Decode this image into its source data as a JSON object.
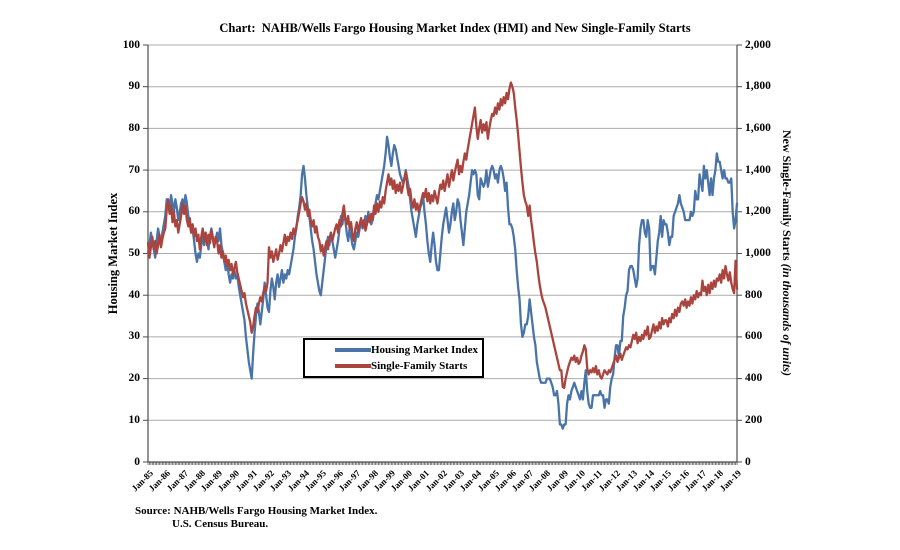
{
  "chart": {
    "title": "Chart:  NAHB/Wells Fargo Housing Market Index (HMI) and New Single-Family Starts",
    "source_line1": "Source: NAHB/Wells Fargo Housing Market Index.",
    "source_line2": "U.S. Census Bureau."
  },
  "colors": {
    "background": "#FFFFFF",
    "grid": "#ABABAB",
    "axis": "#4D4D4D",
    "text": "#000000",
    "hmi_line": "#4A74A8",
    "starts_line": "#A9443E"
  },
  "chart_data": {
    "type": "line",
    "title": "Chart:  NAHB/Wells Fargo Housing Market Index (HMI) and New Single-Family Starts",
    "x_unit": "monthly, Jan-1985 through Feb-2019",
    "grid": true,
    "x_tick_labels": [
      "Jan-85",
      "Jan-86",
      "Jan-87",
      "Jan-88",
      "Jan-89",
      "Jan-90",
      "Jan-91",
      "Jan-92",
      "Jan-93",
      "Jan-94",
      "Jan-95",
      "Jan-96",
      "Jan-97",
      "Jan-98",
      "Jan-99",
      "Jan-00",
      "Jan-01",
      "Jan-02",
      "Jan-03",
      "Jan-04",
      "Jan-05",
      "Jan-06",
      "Jan-07",
      "Jan-08",
      "Jan-09",
      "Jan-10",
      "Jan-11",
      "Jan-12",
      "Jan-13",
      "Jan-14",
      "Jan-15",
      "Jan-16",
      "Jan-17",
      "Jan-18",
      "Jan-19"
    ],
    "left_axis": {
      "label": "Housing Market Index",
      "min": 0,
      "max": 100,
      "tick_step": 10,
      "tick_labels": [
        "100",
        "90",
        "80",
        "70",
        "60",
        "50",
        "40",
        "30",
        "20",
        "10",
        "0"
      ]
    },
    "right_axis": {
      "label": "New Single-Family Starts ",
      "label_italic": "(in thousands of units)",
      "min": 0,
      "max": 2000,
      "tick_step": 200,
      "tick_labels": [
        "2,000",
        "1,800",
        "1,600",
        "1,400",
        "1,200",
        "1,000",
        "800",
        "600",
        "400",
        "200",
        "0"
      ]
    },
    "legend": {
      "position": "inside-lower-left",
      "entries": [
        {
          "name": "Housing Market Index",
          "color": "#4A74A8"
        },
        {
          "name": "Single-Family Starts",
          "color": "#A9443E"
        }
      ]
    },
    "series": [
      {
        "name": "Housing Market Index",
        "axis": "left",
        "color": "#4A74A8",
        "values": [
          50,
          52,
          55,
          53,
          51,
          49,
          53,
          56,
          54,
          52,
          55,
          57,
          59,
          63,
          62,
          60,
          64,
          62,
          60,
          63,
          61,
          58,
          60,
          62,
          63,
          61,
          64,
          62,
          59,
          57,
          55,
          56,
          53,
          50,
          48,
          50,
          49,
          52,
          54,
          52,
          55,
          53,
          51,
          54,
          56,
          54,
          52,
          53,
          55,
          53,
          56,
          52,
          50,
          48,
          46,
          48,
          45,
          43,
          45,
          44,
          46,
          44,
          45,
          42,
          40,
          38,
          36,
          34,
          30,
          27,
          24,
          22,
          20,
          26,
          31,
          35,
          38,
          36,
          33,
          36,
          39,
          43,
          40,
          37,
          36,
          41,
          44,
          42,
          39,
          43,
          45,
          42,
          44,
          46,
          43,
          45,
          44,
          46,
          45,
          47,
          49,
          51,
          54,
          56,
          59,
          61,
          64,
          69,
          71,
          68,
          64,
          61,
          59,
          56,
          53,
          51,
          48,
          45,
          43,
          41,
          40,
          43,
          46,
          49,
          52,
          54,
          52,
          55,
          53,
          51,
          49,
          51,
          53,
          56,
          59,
          57,
          60,
          58,
          55,
          53,
          56,
          54,
          52,
          51,
          53,
          55,
          54,
          56,
          58,
          56,
          57,
          59,
          57,
          60,
          58,
          57,
          58,
          60,
          62,
          64,
          63,
          65,
          67,
          69,
          71,
          74,
          78,
          76,
          73,
          71,
          74,
          76,
          75,
          73,
          71,
          69,
          68,
          67,
          68,
          70,
          68,
          66,
          63,
          60,
          58,
          56,
          54,
          57,
          59,
          61,
          62,
          64,
          60,
          57,
          53,
          50,
          48,
          52,
          55,
          52,
          48,
          46,
          46,
          50,
          54,
          57,
          59,
          61,
          58,
          55,
          57,
          60,
          62,
          58,
          60,
          63,
          62,
          58,
          55,
          52,
          56,
          60,
          62,
          64,
          67,
          70,
          69,
          70,
          69,
          64,
          63,
          68,
          67,
          66,
          67,
          70,
          66,
          68,
          70,
          71,
          70,
          68,
          69,
          67,
          70,
          71,
          70,
          68,
          65,
          67,
          61,
          57,
          57,
          56,
          54,
          51,
          46,
          42,
          39,
          33,
          30,
          31,
          33,
          33,
          35,
          39,
          36,
          33,
          30,
          28,
          24,
          22,
          20,
          19,
          19,
          19,
          19,
          20,
          20,
          20,
          19,
          18,
          16,
          16,
          17,
          14,
          9,
          9,
          8,
          9,
          9,
          14,
          16,
          15,
          17,
          18,
          19,
          18,
          17,
          16,
          15,
          17,
          15,
          19,
          22,
          17,
          14,
          13,
          13,
          16,
          16,
          16,
          16,
          16,
          17,
          16,
          16,
          13,
          15,
          15,
          14,
          18,
          20,
          21,
          25,
          28,
          28,
          25,
          29,
          29,
          35,
          37,
          40,
          41,
          46,
          47,
          47,
          46,
          44,
          42,
          44,
          52,
          56,
          58,
          58,
          55,
          54,
          58,
          56,
          46,
          47,
          47,
          45,
          49,
          53,
          55,
          59,
          54,
          58,
          57,
          57,
          55,
          52,
          54,
          54,
          59,
          60,
          61,
          62,
          64,
          62,
          61,
          60,
          58,
          58,
          58,
          58,
          60,
          59,
          60,
          65,
          63,
          63,
          69,
          67,
          65,
          71,
          68,
          70,
          67,
          64,
          68,
          64,
          68,
          70,
          74,
          72,
          72,
          70,
          68,
          70,
          68,
          68,
          67,
          67,
          68,
          60,
          56,
          58,
          62
        ]
      },
      {
        "name": "Single-Family Starts",
        "axis": "right",
        "color": "#A9443E",
        "values": [
          1050,
          980,
          1030,
          1080,
          1020,
          1060,
          1000,
          1040,
          1090,
          1030,
          1070,
          1100,
          1120,
          1210,
          1260,
          1190,
          1230,
          1150,
          1200,
          1130,
          1160,
          1100,
          1140,
          1180,
          1240,
          1190,
          1230,
          1160,
          1130,
          1170,
          1100,
          1140,
          1080,
          1120,
          1060,
          1090,
          1020,
          1080,
          1120,
          1060,
          1100,
          1040,
          1090,
          1050,
          1110,
          1070,
          1030,
          1080,
          1060,
          1000,
          1040,
          980,
          1010,
          960,
          990,
          940,
          970,
          920,
          950,
          900,
          930,
          960,
          910,
          880,
          850,
          820,
          790,
          810,
          760,
          730,
          700,
          670,
          620,
          650,
          700,
          740,
          720,
          760,
          790,
          770,
          810,
          840,
          820,
          860,
          1030,
          980,
          1010,
          960,
          990,
          1020,
          970,
          1000,
          1040,
          1010,
          1050,
          1090,
          1040,
          1080,
          1060,
          1100,
          1070,
          1120,
          1090,
          1130,
          1160,
          1200,
          1240,
          1270,
          1250,
          1210,
          1240,
          1180,
          1210,
          1160,
          1130,
          1160,
          1100,
          1130,
          1080,
          1060,
          1010,
          1040,
          990,
          1030,
          1060,
          1020,
          1070,
          1100,
          1060,
          1090,
          1120,
          1140,
          1100,
          1160,
          1130,
          1190,
          1230,
          1170,
          1140,
          1180,
          1120,
          1150,
          1090,
          1060,
          1120,
          1150,
          1100,
          1140,
          1170,
          1130,
          1160,
          1110,
          1140,
          1180,
          1150,
          1190,
          1160,
          1230,
          1190,
          1240,
          1200,
          1250,
          1220,
          1270,
          1240,
          1300,
          1340,
          1380,
          1330,
          1360,
          1310,
          1350,
          1290,
          1330,
          1300,
          1340,
          1290,
          1320,
          1360,
          1390,
          1320,
          1280,
          1310,
          1250,
          1220,
          1260,
          1210,
          1240,
          1200,
          1230,
          1260,
          1290,
          1270,
          1310,
          1250,
          1290,
          1240,
          1280,
          1250,
          1300,
          1270,
          1240,
          1290,
          1330,
          1310,
          1350,
          1300,
          1340,
          1380,
          1320,
          1360,
          1400,
          1350,
          1390,
          1420,
          1450,
          1380,
          1420,
          1390,
          1440,
          1480,
          1450,
          1500,
          1540,
          1580,
          1620,
          1660,
          1700,
          1610,
          1550,
          1600,
          1640,
          1580,
          1620,
          1590,
          1630,
          1550,
          1600,
          1640,
          1670,
          1660,
          1700,
          1670,
          1720,
          1690,
          1740,
          1710,
          1750,
          1720,
          1770,
          1740,
          1790,
          1820,
          1800,
          1770,
          1700,
          1640,
          1570,
          1490,
          1410,
          1340,
          1280,
          1250,
          1230,
          1180,
          1230,
          1160,
          1110,
          1050,
          1000,
          960,
          900,
          850,
          810,
          780,
          760,
          740,
          710,
          680,
          650,
          620,
          590,
          560,
          530,
          500,
          470,
          440,
          440,
          360,
          355,
          400,
          430,
          460,
          480,
          500,
          490,
          510,
          480,
          500,
          470,
          480,
          510,
          530,
          560,
          540,
          450,
          420,
          440,
          430,
          450,
          430,
          460,
          420,
          440,
          410,
          400,
          420,
          440,
          430,
          420,
          440,
          430,
          450,
          470,
          490,
          510,
          480,
          500,
          520,
          490,
          510,
          530,
          550,
          540,
          560,
          550,
          580,
          610,
          590,
          620,
          570,
          600,
          580,
          610,
          590,
          630,
          610,
          650,
          590,
          600,
          630,
          660,
          620,
          650,
          630,
          670,
          640,
          690,
          660,
          680,
          680,
          650,
          690,
          670,
          710,
          690,
          730,
          700,
          740,
          720,
          760,
          770,
          750,
          780,
          740,
          770,
          750,
          790,
          760,
          800,
          780,
          820,
          790,
          810,
          800,
          870,
          820,
          840,
          800,
          850,
          810,
          860,
          830,
          870,
          840,
          880,
          870,
          900,
          860,
          920,
          880,
          940,
          900,
          870,
          910,
          860,
          830,
          810,
          965,
          830
        ]
      }
    ]
  }
}
